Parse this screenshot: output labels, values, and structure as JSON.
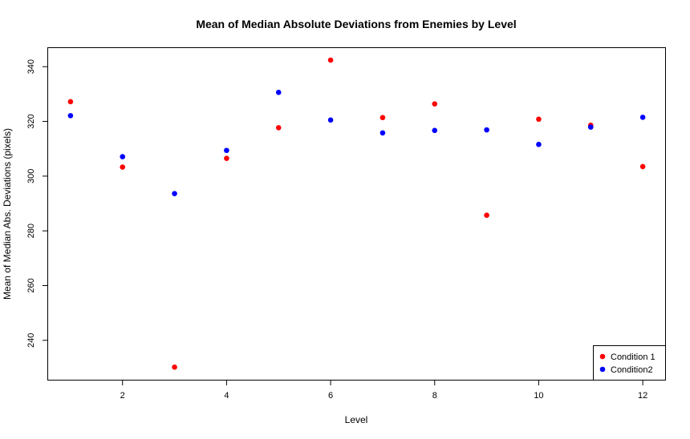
{
  "chart_data": {
    "type": "scatter",
    "title": "Mean of Median Absolute Deviations from Enemies by Level",
    "xlabel": "Level",
    "ylabel": "Mean of Median Abs. Deviations (pixels)",
    "xlim": [
      0.57,
      12.43
    ],
    "ylim": [
      225.6,
      346.8
    ],
    "xticks": [
      2,
      4,
      6,
      8,
      10,
      12
    ],
    "yticks": [
      240,
      260,
      280,
      300,
      320,
      340
    ],
    "grid": false,
    "legend_position": "bottom-right",
    "x": [
      1,
      2,
      3,
      4,
      5,
      6,
      7,
      8,
      9,
      10,
      11,
      12
    ],
    "series": [
      {
        "name": "Condition 1",
        "color": "#ff0000",
        "values": [
          327.2,
          303.3,
          230.2,
          306.5,
          317.7,
          342.4,
          321.4,
          326.4,
          285.7,
          320.8,
          318.6,
          303.5
        ]
      },
      {
        "name": "Condition2",
        "color": "#0000ff",
        "values": [
          322.1,
          307.1,
          293.6,
          309.4,
          330.6,
          320.5,
          315.8,
          316.7,
          316.9,
          311.6,
          317.9,
          321.5
        ]
      }
    ]
  }
}
